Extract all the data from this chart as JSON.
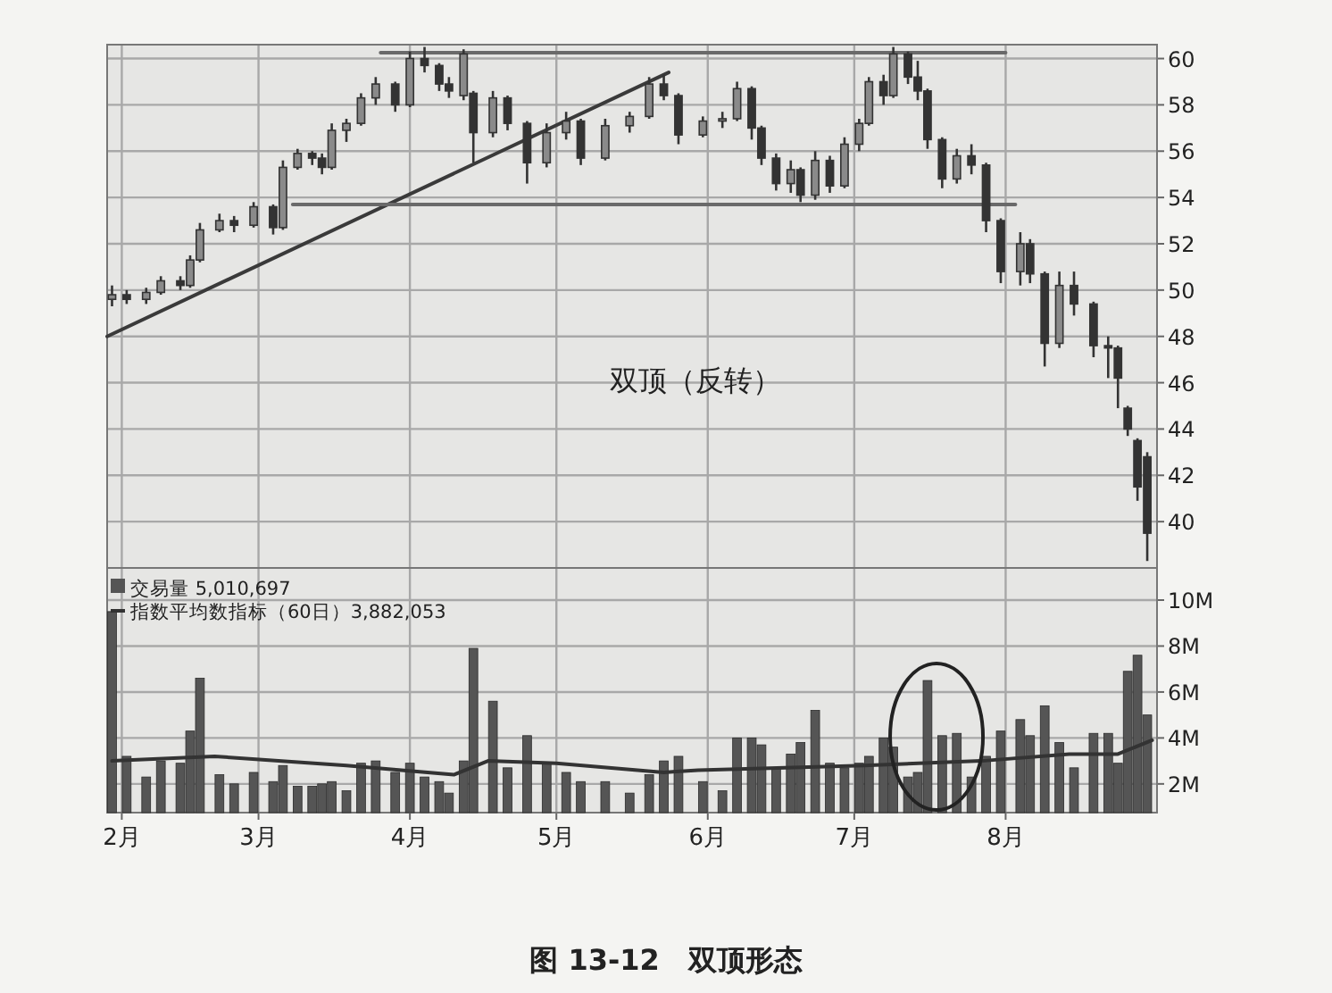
{
  "chart_data": [
    {
      "type": "candlestick",
      "color": "#333333",
      "tick_labels": "y",
      "grid": true,
      "legend": false,
      "xlim": [
        "--01-29",
        "--09-01"
      ],
      "xticks": [
        {
          "value": "--02-01",
          "label": null
        },
        {
          "value": "--03-01",
          "label": null
        },
        {
          "value": "--04-01",
          "label": null
        },
        {
          "value": "--05-01",
          "label": null
        },
        {
          "value": "--06-01",
          "label": null
        },
        {
          "value": "--07-01",
          "label": null
        },
        {
          "value": "--08-01",
          "label": null
        }
      ],
      "ylim": [
        38,
        60.6
      ],
      "yticks": [
        40,
        42,
        44,
        46,
        48,
        50,
        52,
        54,
        56,
        58,
        60
      ],
      "annotations": [
        "双顶（反转）"
      ],
      "x": [
        "--01-30",
        "--02-02",
        "--02-06",
        "--02-09",
        "--02-13",
        "--02-15",
        "--02-17",
        "--02-21",
        "--02-24",
        "--02-28",
        "--03-04",
        "--03-06",
        "--03-09",
        "--03-12",
        "--03-14",
        "--03-16",
        "--03-19",
        "--03-22",
        "--03-25",
        "--03-29",
        "--04-01",
        "--04-04",
        "--04-07",
        "--04-09",
        "--04-12",
        "--04-14",
        "--04-18",
        "--04-21",
        "--04-25",
        "--04-29",
        "--05-03",
        "--05-06",
        "--05-11",
        "--05-16",
        "--05-20",
        "--05-23",
        "--05-26",
        "--05-31",
        "--06-04",
        "--06-07",
        "--06-10",
        "--06-12",
        "--06-15",
        "--06-18",
        "--06-20",
        "--06-23",
        "--06-26",
        "--06-29",
        "--07-02",
        "--07-04",
        "--07-07",
        "--07-09",
        "--07-12",
        "--07-14",
        "--07-16",
        "--07-19",
        "--07-22",
        "--07-25",
        "--07-28",
        "--07-31",
        "--08-04",
        "--08-06",
        "--08-09",
        "--08-12",
        "--08-15",
        "--08-19",
        "--08-22",
        "--08-24",
        "--08-26",
        "--08-28",
        "--08-30"
      ],
      "ohlc": [
        [
          49.6,
          50.2,
          49.3,
          49.8
        ],
        [
          49.8,
          50.0,
          49.4,
          49.6
        ],
        [
          49.6,
          50.1,
          49.4,
          49.9
        ],
        [
          49.9,
          50.6,
          49.8,
          50.4
        ],
        [
          50.4,
          50.6,
          50.0,
          50.2
        ],
        [
          50.2,
          51.5,
          50.1,
          51.3
        ],
        [
          51.3,
          52.9,
          51.2,
          52.6
        ],
        [
          52.6,
          53.3,
          52.5,
          53.0
        ],
        [
          53.0,
          53.2,
          52.5,
          52.8
        ],
        [
          52.8,
          53.8,
          52.7,
          53.6
        ],
        [
          53.6,
          53.7,
          52.4,
          52.7
        ],
        [
          52.7,
          55.6,
          52.6,
          55.3
        ],
        [
          55.3,
          56.1,
          55.2,
          55.9
        ],
        [
          55.9,
          56.0,
          55.4,
          55.7
        ],
        [
          55.7,
          55.9,
          55.0,
          55.3
        ],
        [
          55.3,
          57.2,
          55.2,
          56.9
        ],
        [
          56.9,
          57.4,
          56.4,
          57.2
        ],
        [
          57.2,
          58.5,
          57.1,
          58.3
        ],
        [
          58.3,
          59.2,
          58.0,
          58.9
        ],
        [
          58.9,
          59.0,
          57.7,
          58.0
        ],
        [
          58.0,
          60.3,
          57.9,
          60.0
        ],
        [
          60.0,
          60.5,
          59.4,
          59.7
        ],
        [
          59.7,
          59.8,
          58.6,
          58.9
        ],
        [
          58.9,
          59.2,
          58.3,
          58.6
        ],
        [
          58.4,
          60.4,
          58.2,
          60.2
        ],
        [
          58.5,
          58.6,
          55.5,
          56.8
        ],
        [
          56.8,
          58.6,
          56.6,
          58.3
        ],
        [
          58.3,
          58.4,
          56.9,
          57.2
        ],
        [
          57.2,
          57.3,
          54.6,
          55.5
        ],
        [
          55.5,
          57.2,
          55.3,
          56.8
        ],
        [
          56.8,
          57.7,
          56.5,
          57.3
        ],
        [
          57.3,
          57.4,
          55.4,
          55.7
        ],
        [
          55.7,
          57.4,
          55.6,
          57.1
        ],
        [
          57.1,
          57.7,
          56.8,
          57.5
        ],
        [
          57.5,
          59.2,
          57.4,
          58.9
        ],
        [
          58.9,
          59.3,
          58.2,
          58.4
        ],
        [
          58.4,
          58.5,
          56.3,
          56.7
        ],
        [
          56.7,
          57.5,
          56.6,
          57.3
        ],
        [
          57.3,
          57.7,
          57.0,
          57.4
        ],
        [
          57.4,
          59.0,
          57.3,
          58.7
        ],
        [
          58.7,
          58.8,
          56.5,
          57.0
        ],
        [
          57.0,
          57.1,
          55.4,
          55.7
        ],
        [
          55.7,
          55.9,
          54.3,
          54.6
        ],
        [
          54.6,
          55.6,
          54.2,
          55.2
        ],
        [
          55.2,
          55.3,
          53.8,
          54.1
        ],
        [
          54.1,
          56.0,
          53.9,
          55.6
        ],
        [
          55.6,
          55.8,
          54.2,
          54.5
        ],
        [
          54.5,
          56.6,
          54.4,
          56.3
        ],
        [
          56.3,
          57.4,
          56.0,
          57.2
        ],
        [
          57.2,
          59.2,
          57.1,
          59.0
        ],
        [
          59.0,
          59.3,
          58.0,
          58.4
        ],
        [
          58.4,
          60.5,
          58.3,
          60.2
        ],
        [
          60.2,
          60.3,
          58.9,
          59.2
        ],
        [
          59.2,
          59.9,
          58.2,
          58.6
        ],
        [
          58.6,
          58.7,
          56.1,
          56.5
        ],
        [
          56.5,
          56.6,
          54.4,
          54.8
        ],
        [
          54.8,
          56.1,
          54.6,
          55.8
        ],
        [
          55.8,
          56.3,
          55.0,
          55.4
        ],
        [
          55.4,
          55.5,
          52.5,
          53.0
        ],
        [
          53.0,
          53.1,
          50.3,
          50.8
        ],
        [
          50.8,
          52.5,
          50.2,
          52.0
        ],
        [
          52.0,
          52.2,
          50.3,
          50.7
        ],
        [
          50.7,
          50.8,
          46.7,
          47.7
        ],
        [
          47.7,
          50.8,
          47.5,
          50.2
        ],
        [
          50.2,
          50.8,
          48.9,
          49.4
        ],
        [
          49.4,
          49.5,
          47.1,
          47.6
        ],
        [
          47.6,
          48.0,
          46.2,
          47.5
        ],
        [
          47.5,
          47.6,
          44.9,
          46.2
        ],
        [
          44.9,
          45.0,
          43.7,
          44.0
        ],
        [
          43.5,
          43.6,
          40.9,
          41.5
        ],
        [
          42.8,
          43.0,
          38.3,
          39.5
        ]
      ],
      "series": [
        {
          "type": "line",
          "color": "#3a3a3a",
          "x": [
            "--01-29",
            "--05-24"
          ],
          "values": [
            48.0,
            59.4
          ]
        },
        {
          "type": "line",
          "color": "#6a6a6a",
          "x": [
            "--03-26",
            "--08-01"
          ],
          "values": [
            60.25,
            60.25
          ]
        },
        {
          "type": "line",
          "color": "#6a6a6a",
          "x": [
            "--03-08",
            "--08-03"
          ],
          "values": [
            53.7,
            53.7
          ]
        }
      ]
    },
    {
      "type": "bar",
      "grid": true,
      "legend": "top left",
      "xlim": [
        "--01-29",
        "--09-01"
      ],
      "xticks": [
        {
          "value": "--02-01",
          "label": "2月"
        },
        {
          "value": "--03-01",
          "label": "3月"
        },
        {
          "value": "--04-01",
          "label": "4月"
        },
        {
          "value": "--05-01",
          "label": "5月"
        },
        {
          "value": "--06-01",
          "label": "6月"
        },
        {
          "value": "--07-01",
          "label": "7月"
        },
        {
          "value": "--08-01",
          "label": "8月"
        }
      ],
      "ylim": [
        0.75,
        11.4
      ],
      "yticks": [
        {
          "value": 2,
          "label": "2M"
        },
        {
          "value": 4,
          "label": "4M"
        },
        {
          "value": 6,
          "label": "6M"
        },
        {
          "value": 8,
          "label": "8M"
        },
        {
          "value": 10,
          "label": "10M"
        }
      ],
      "annotations": [
        "图 13-12　双顶形态"
      ],
      "x": [
        "--01-30",
        "--02-02",
        "--02-06",
        "--02-09",
        "--02-13",
        "--02-15",
        "--02-17",
        "--02-21",
        "--02-24",
        "--02-28",
        "--03-04",
        "--03-06",
        "--03-09",
        "--03-12",
        "--03-14",
        "--03-16",
        "--03-19",
        "--03-22",
        "--03-25",
        "--03-29",
        "--04-01",
        "--04-04",
        "--04-07",
        "--04-09",
        "--04-12",
        "--04-14",
        "--04-18",
        "--04-21",
        "--04-25",
        "--04-29",
        "--05-03",
        "--05-06",
        "--05-11",
        "--05-16",
        "--05-20",
        "--05-23",
        "--05-26",
        "--05-31",
        "--06-04",
        "--06-07",
        "--06-10",
        "--06-12",
        "--06-15",
        "--06-18",
        "--06-20",
        "--06-23",
        "--06-26",
        "--06-29",
        "--07-02",
        "--07-04",
        "--07-07",
        "--07-09",
        "--07-12",
        "--07-14",
        "--07-16",
        "--07-19",
        "--07-22",
        "--07-25",
        "--07-28",
        "--07-31",
        "--08-04",
        "--08-06",
        "--08-09",
        "--08-12",
        "--08-15",
        "--08-19",
        "--08-22",
        "--08-24",
        "--08-26",
        "--08-28",
        "--08-30"
      ],
      "series": [
        {
          "name": "交易量 5,010,697",
          "type": "bar",
          "color": "#555555",
          "values": [
            9.5,
            3.2,
            2.3,
            3.0,
            2.9,
            4.3,
            6.6,
            2.4,
            2.0,
            2.5,
            2.1,
            2.8,
            1.9,
            1.9,
            2.0,
            2.1,
            1.7,
            2.9,
            3.0,
            2.5,
            2.9,
            2.3,
            2.1,
            1.6,
            3.0,
            7.9,
            5.6,
            2.7,
            4.1,
            2.9,
            2.5,
            2.1,
            2.1,
            1.6,
            2.4,
            3.0,
            3.2,
            2.1,
            1.7,
            4.0,
            4.0,
            3.7,
            2.7,
            3.3,
            3.8,
            5.2,
            2.9,
            2.7,
            2.9,
            3.2,
            4.0,
            3.6,
            2.3,
            2.5,
            6.5,
            4.1,
            4.2,
            2.3,
            3.2,
            4.3,
            4.8,
            4.1,
            5.4,
            3.8,
            2.7,
            4.2,
            4.2,
            2.9,
            6.9,
            7.6,
            5.0
          ]
        },
        {
          "name": "指数平均数指标（60日）3,882,053",
          "type": "line",
          "color": "#333333",
          "x": [
            "--01-30",
            "--02-20",
            "--03-19",
            "--04-10",
            "--04-17",
            "--05-01",
            "--05-23",
            "--05-30",
            "--07-03",
            "--07-27",
            "--08-14",
            "--08-24",
            "--08-31"
          ],
          "values": [
            3.0,
            3.2,
            2.8,
            2.4,
            3.0,
            2.9,
            2.5,
            2.6,
            2.8,
            3.0,
            3.3,
            3.3,
            3.9
          ]
        }
      ]
    }
  ]
}
